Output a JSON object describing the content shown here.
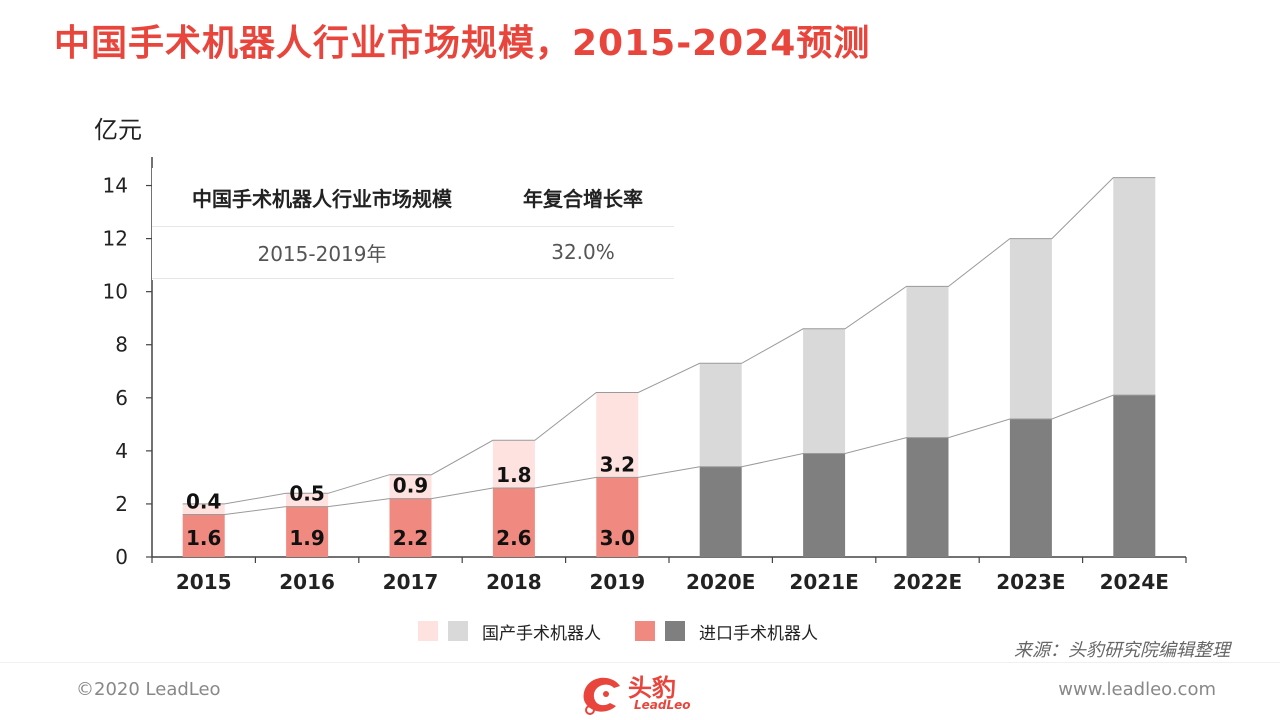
{
  "page": {
    "title": "中国手术机器人行业市场规模，2015-2024预测",
    "source": "来源：头豹研究院编辑整理",
    "copyright": "©2020 LeadLeo",
    "website": "www.leadleo.com",
    "brand_cn": "头豹",
    "brand_en": "LeadLeo"
  },
  "cagr_table": {
    "headers": [
      "中国手术机器人行业市场规模",
      "年复合增长率"
    ],
    "rows": [
      [
        "2015-2019年",
        "32.0%"
      ]
    ]
  },
  "chart_data": {
    "type": "bar",
    "stacked": true,
    "ylabel": "亿元",
    "ylim": [
      0,
      15
    ],
    "yticks": [
      0,
      2,
      4,
      6,
      8,
      10,
      12,
      14
    ],
    "categories": [
      "2015",
      "2016",
      "2017",
      "2018",
      "2019",
      "2020E",
      "2021E",
      "2022E",
      "2023E",
      "2024E"
    ],
    "series": [
      {
        "name": "进口手术机器人",
        "values": [
          1.6,
          1.9,
          2.2,
          2.6,
          3.0,
          3.4,
          3.9,
          4.5,
          5.2,
          6.1
        ],
        "labels": [
          "1.6",
          "1.9",
          "2.2",
          "2.6",
          "3.0",
          "",
          "",
          "",
          "",
          ""
        ],
        "colors": [
          "#f08a80",
          "#f08a80",
          "#f08a80",
          "#f08a80",
          "#f08a80",
          "#7f7f7f",
          "#7f7f7f",
          "#7f7f7f",
          "#7f7f7f",
          "#7f7f7f"
        ]
      },
      {
        "name": "国产手术机器人",
        "values": [
          0.4,
          0.5,
          0.9,
          1.8,
          3.2,
          3.9,
          4.7,
          5.7,
          6.8,
          8.2
        ],
        "labels": [
          "0.4",
          "0.5",
          "0.9",
          "1.8",
          "3.2",
          "",
          "",
          "",
          "",
          ""
        ],
        "colors": [
          "#fde2df",
          "#fde2df",
          "#fde2df",
          "#fde2df",
          "#fde2df",
          "#d9d9d9",
          "#d9d9d9",
          "#d9d9d9",
          "#d9d9d9",
          "#d9d9d9"
        ]
      }
    ],
    "legend": {
      "position": "bottom",
      "items": [
        {
          "label": "国产手术机器人",
          "colors": [
            "#fde2df",
            "#d9d9d9"
          ]
        },
        {
          "label": "进口手术机器人",
          "colors": [
            "#f08a80",
            "#7f7f7f"
          ]
        }
      ]
    },
    "trend_lines": true,
    "grid": false
  }
}
